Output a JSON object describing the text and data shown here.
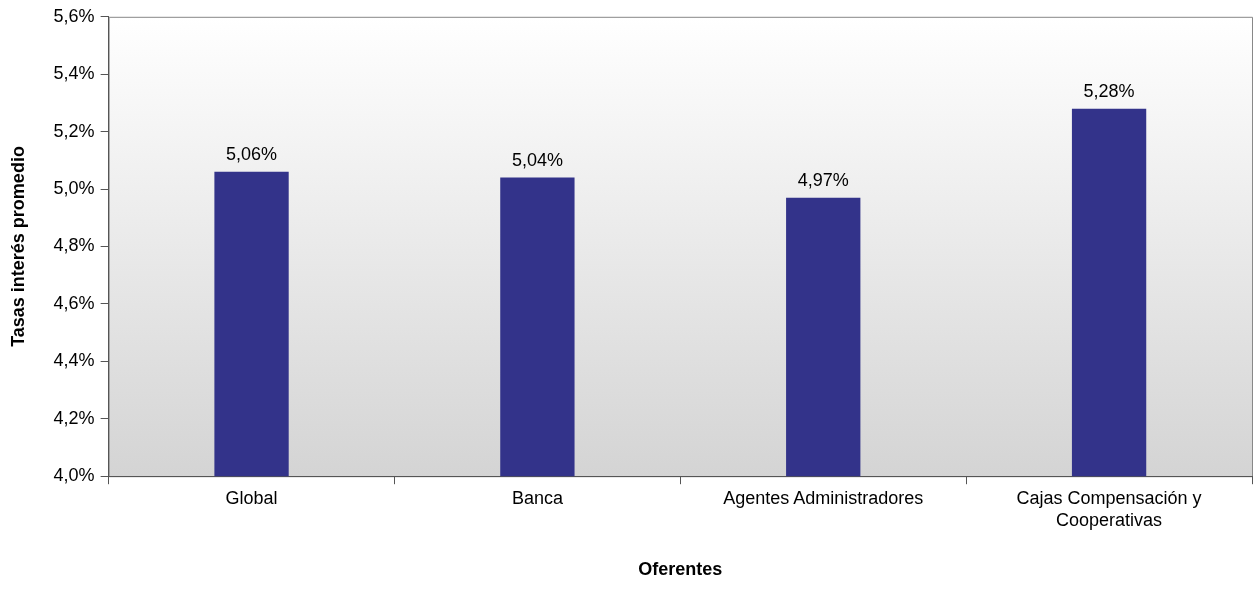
{
  "chart_data": {
    "type": "bar",
    "xlabel": "Oferentes",
    "ylabel": "Tasas interés promedio",
    "categories": [
      "Global",
      "Banca",
      "Agentes Administradores",
      "Cajas Compensación y Cooperativas"
    ],
    "values": [
      5.06,
      5.04,
      4.97,
      5.28
    ],
    "value_labels": [
      "5,06%",
      "5,04%",
      "4,97%",
      "5,28%"
    ],
    "color": "#33338a",
    "ylim": [
      4.0,
      5.6
    ],
    "yticks": [
      {
        "value": 4.0,
        "label": "4,0%"
      },
      {
        "value": 4.2,
        "label": "4,2%"
      },
      {
        "value": 4.4,
        "label": "4,4%"
      },
      {
        "value": 4.6,
        "label": "4,6%"
      },
      {
        "value": 4.8,
        "label": "4,8%"
      },
      {
        "value": 5.0,
        "label": "5,0%"
      },
      {
        "value": 5.2,
        "label": "5,2%"
      },
      {
        "value": 5.4,
        "label": "5,4%"
      },
      {
        "value": 5.6,
        "label": "5,6%"
      }
    ],
    "grid": false,
    "legend": false
  }
}
